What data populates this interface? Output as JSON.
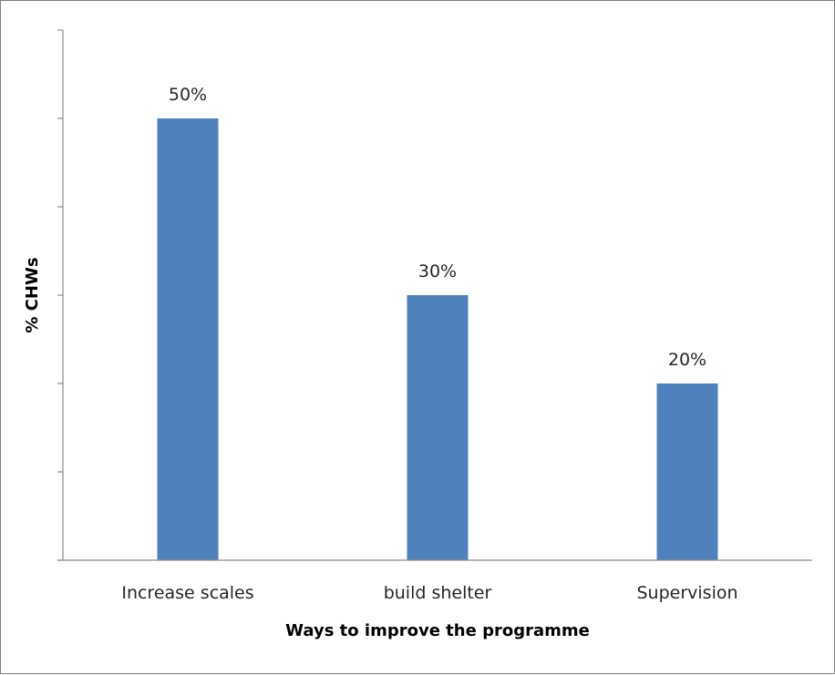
{
  "chart_data": {
    "type": "bar",
    "title": "",
    "categories": [
      "Increase scales",
      "build shelter",
      "Supervision"
    ],
    "values": [
      50,
      30,
      20
    ],
    "data_labels": [
      "50%",
      "30%",
      "20%"
    ],
    "xlabel": "Ways to improve the programme",
    "ylabel": "% CHWs",
    "ylim": [
      0,
      60
    ],
    "y_tick_step": 10,
    "y_tick_labels_shown": false,
    "grid": false,
    "legend": "none",
    "bar_color": "#4f81bd"
  }
}
